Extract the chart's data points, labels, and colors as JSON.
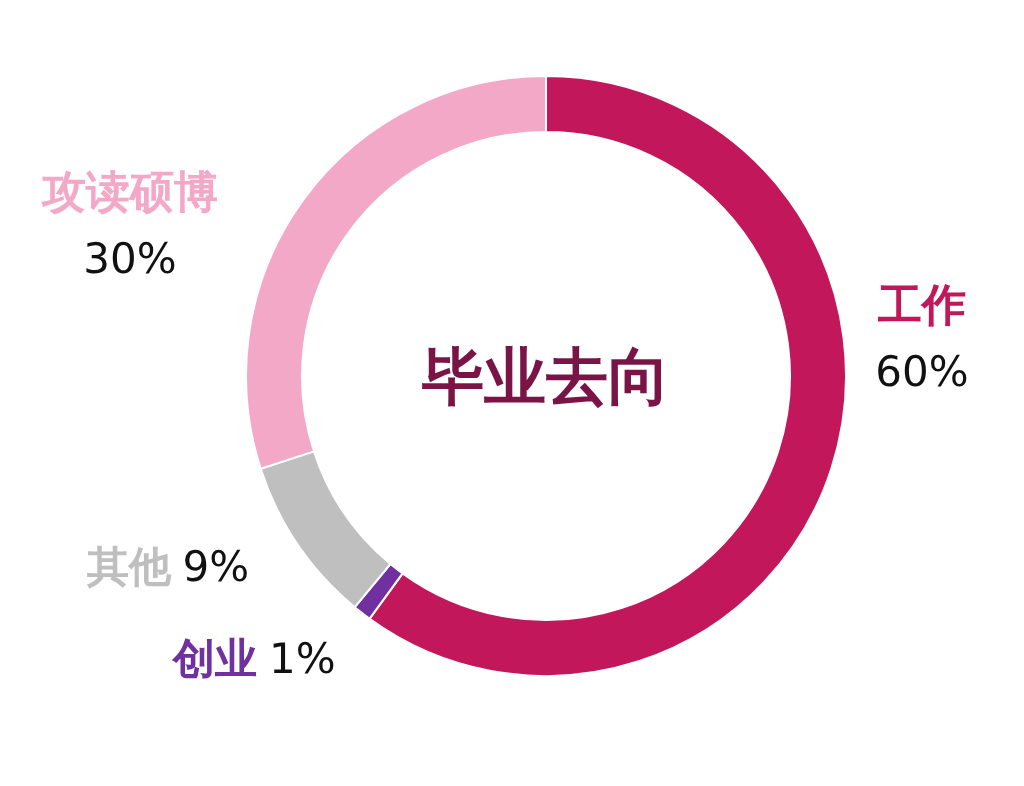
{
  "chart_data": {
    "type": "donut",
    "title": "毕业去向",
    "categories": [
      "工作",
      "创业",
      "其他",
      "攻读硕博"
    ],
    "values": [
      60,
      1,
      9,
      30
    ],
    "colors": [
      "#c2185b",
      "#7030a0",
      "#bfbfbf",
      "#f4a8c8"
    ],
    "value_labels": [
      "60%",
      "1%",
      "9%",
      "30%"
    ]
  }
}
